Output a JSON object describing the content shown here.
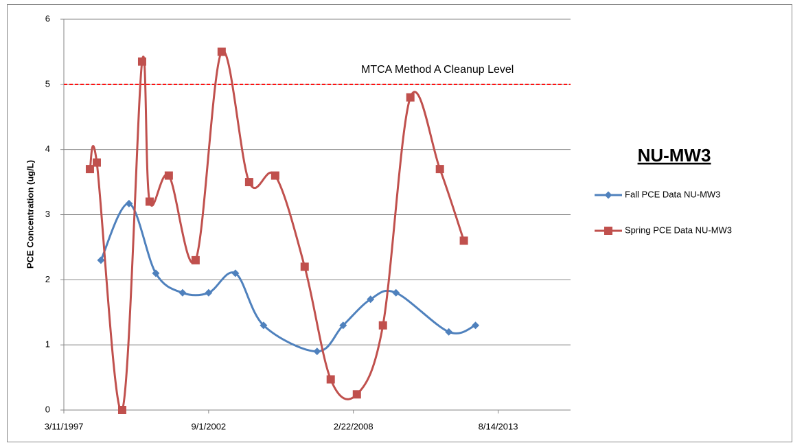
{
  "chart_data": {
    "type": "line",
    "smooth": true,
    "y_label": "PCE Concentration (ug/L)",
    "legend_title": "NU-MW3",
    "legend": "right",
    "grid": true,
    "xlim": [
      "3/11/1997",
      "5/10/2016"
    ],
    "xticks": [
      "3/11/1997",
      "9/1/2002",
      "2/22/2008",
      "8/14/2013"
    ],
    "ylim": [
      0,
      6
    ],
    "yticks": [
      0,
      1,
      2,
      3,
      4,
      5,
      6
    ],
    "reference_line": {
      "value": 5,
      "label": "MTCA Method A Cleanup Level",
      "color": "#ff0000"
    },
    "series": [
      {
        "name": "Fall PCE Data NU-MW3",
        "color": "#4f81bd",
        "marker": "diamond",
        "x": [
          "8/5/1998",
          "8/28/1999",
          "9/1/2000",
          "9/6/2001",
          "9/1/2002",
          "9/6/2003",
          "9/29/2004",
          "10/8/2006",
          "10/3/2007",
          "10/16/2008",
          "10/2/2009",
          "10/2/2011",
          "10/5/2012"
        ],
        "values": [
          2.3,
          3.17,
          2.1,
          1.8,
          1.8,
          2.1,
          1.3,
          0.9,
          1.3,
          1.7,
          1.8,
          1.2,
          1.3
        ]
      },
      {
        "name": "Spring PCE Data NU-MW3",
        "color": "#c0504d",
        "marker": "square",
        "x": [
          "3/6/1998",
          "6/9/1998",
          "5/26/1999",
          "2/25/2000",
          "6/8/2000",
          "2/28/2001",
          "3/5/2002",
          "2/28/2003",
          "3/14/2004",
          "3/9/2005",
          "4/20/2006",
          "4/15/2007",
          "4/10/2008",
          "4/5/2009",
          "4/19/2010",
          "6/1/2011",
          "4/27/2012"
        ],
        "values": [
          3.7,
          3.8,
          0,
          5.35,
          3.2,
          3.6,
          2.3,
          5.5,
          3.5,
          3.6,
          2.2,
          0.47,
          0.24,
          1.3,
          4.8,
          3.7,
          2.6
        ]
      }
    ]
  }
}
